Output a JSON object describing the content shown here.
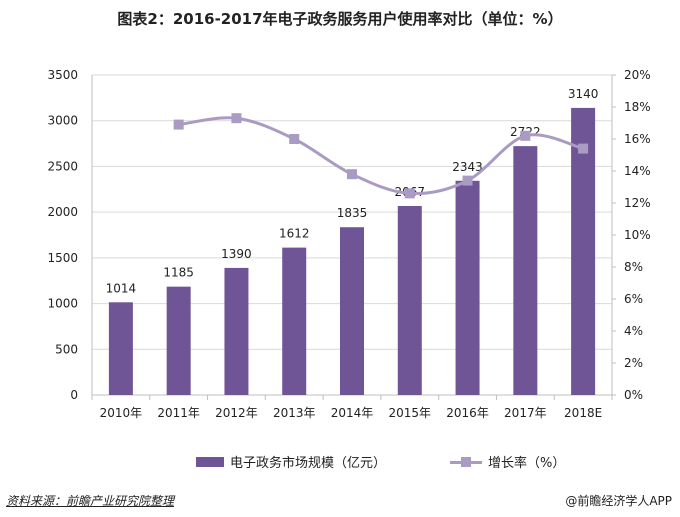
{
  "title": "图表2：2016-2017年电子政务服务用户使用率对比（单位：%）",
  "colors": {
    "bar": "#6f5496",
    "line": "#a99bc4",
    "grid": "#d9d9d9",
    "axis": "#bfbfbf"
  },
  "legend": {
    "bar_label": "电子政务市场规模（亿元）",
    "line_label": "增长率（%）"
  },
  "source": "资料来源：前瞻产业研究院整理",
  "credit": "@前瞻经济学人APP",
  "chart_data": {
    "type": "bar+line",
    "title": "图表2：2016-2017年电子政务服务用户使用率对比（单位：%）",
    "categories": [
      "2010年",
      "2011年",
      "2012年",
      "2013年",
      "2014年",
      "2015年",
      "2016年",
      "2017年",
      "2018E"
    ],
    "series": [
      {
        "name": "电子政务市场规模（亿元）",
        "type": "bar",
        "axis": "left",
        "values": [
          1014,
          1185,
          1390,
          1612,
          1835,
          2067,
          2343,
          2722,
          3140
        ],
        "labels": [
          "1014",
          "1185",
          "1390",
          "1612",
          "1835",
          "2067",
          "2343",
          "2722",
          "3140"
        ]
      },
      {
        "name": "增长率（%）",
        "type": "line",
        "axis": "right",
        "values": [
          null,
          16.9,
          17.3,
          16.0,
          13.8,
          12.6,
          13.4,
          16.2,
          15.4
        ]
      }
    ],
    "y_left": {
      "ylim": [
        0,
        3500
      ],
      "ticks": [
        "0",
        "500",
        "1000",
        "1500",
        "2000",
        "2500",
        "3000",
        "3500"
      ],
      "tick_values": [
        0,
        500,
        1000,
        1500,
        2000,
        2500,
        3000,
        3500
      ]
    },
    "y_right": {
      "ylim": [
        0,
        20
      ],
      "ticks": [
        "0%",
        "2%",
        "4%",
        "6%",
        "8%",
        "10%",
        "12%",
        "14%",
        "16%",
        "18%",
        "20%"
      ],
      "tick_values": [
        0,
        2,
        4,
        6,
        8,
        10,
        12,
        14,
        16,
        18,
        20
      ]
    },
    "legend_position": "bottom"
  }
}
